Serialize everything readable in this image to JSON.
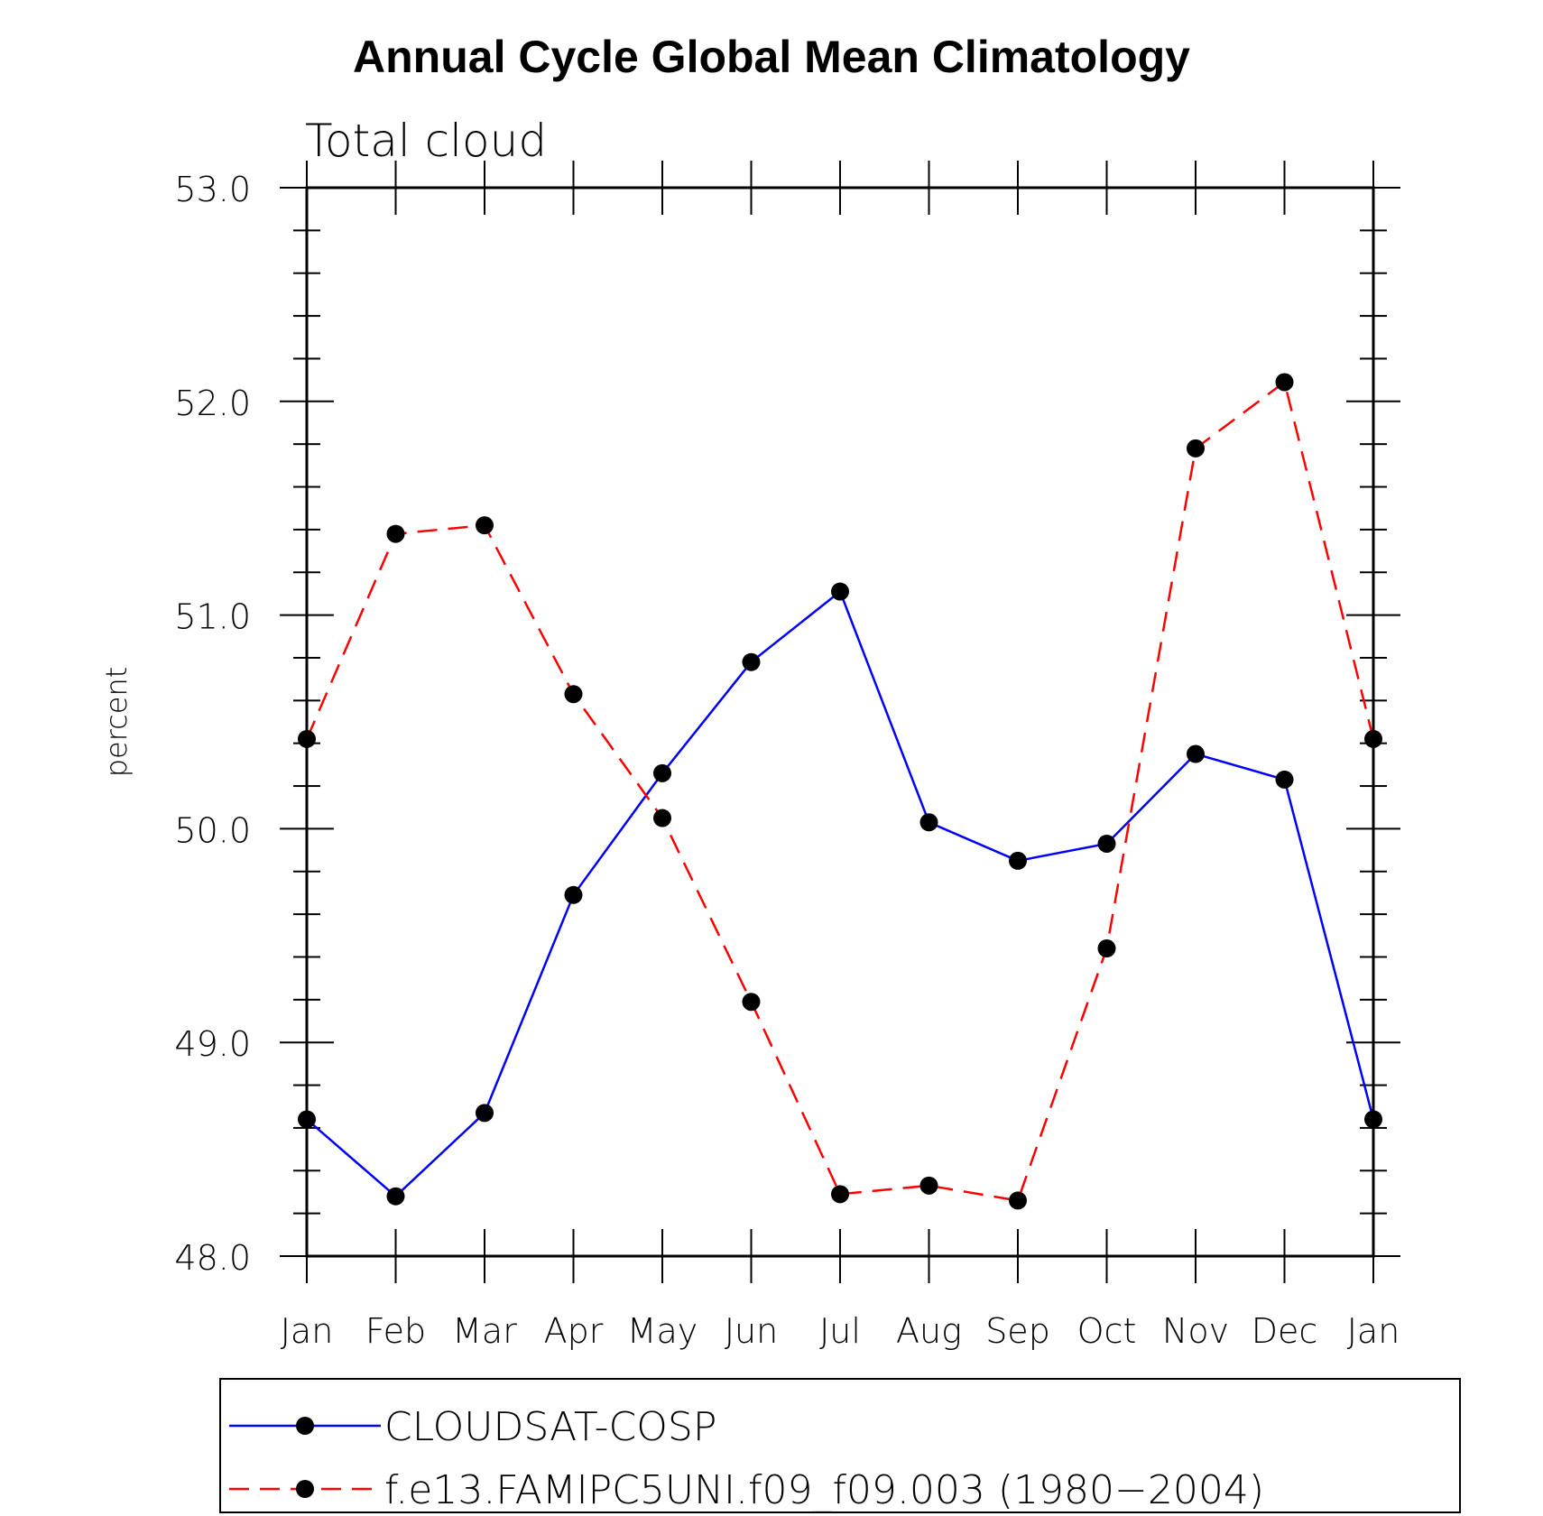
{
  "chart_data": {
    "type": "line",
    "title": "Annual Cycle Global Mean Climatology",
    "subtitle": "Total cloud",
    "xlabel": "",
    "ylabel": "percent",
    "ylim": [
      48.0,
      53.0
    ],
    "yticks": [
      "48.0",
      "49.0",
      "50.0",
      "51.0",
      "52.0",
      "53.0"
    ],
    "categories": [
      "Jan",
      "Feb",
      "Mar",
      "Apr",
      "May",
      "Jun",
      "Jul",
      "Aug",
      "Sep",
      "Oct",
      "Nov",
      "Dec",
      "Jan"
    ],
    "grid": false,
    "legend_position": "bottom",
    "series": [
      {
        "name": "CLOUDSAT-COSP",
        "color": "#0000ff",
        "style": "solid",
        "marker": "dot",
        "values": [
          48.64,
          48.28,
          48.67,
          49.69,
          50.26,
          50.78,
          51.11,
          50.03,
          49.85,
          49.93,
          50.35,
          50.23,
          48.64
        ]
      },
      {
        "name": "f.e13.FAMIPC5UNI.f09_f09.003 (1980−2004)",
        "color": "#ff0000",
        "style": "dashed",
        "marker": "dot",
        "values": [
          50.42,
          51.38,
          51.42,
          50.63,
          50.05,
          49.19,
          48.29,
          48.33,
          48.26,
          49.44,
          51.78,
          52.09,
          50.42
        ]
      }
    ]
  }
}
